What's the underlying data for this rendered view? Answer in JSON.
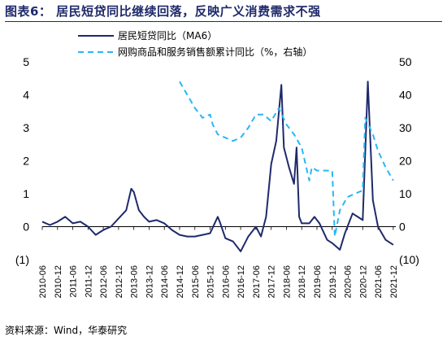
{
  "figure": {
    "title": "图表6：  居民短贷同比继续回落，反映广义消费需求不强",
    "source": "资料来源：Wind，华泰研究"
  },
  "chart_data": {
    "type": "line",
    "legend": [
      {
        "name": "居民短贷同比（MA6）",
        "style": "solid",
        "color": "#1f2a6b",
        "axis": "left"
      },
      {
        "name": "网购商品和服务销售额累计同比（%，右轴）",
        "style": "dashed",
        "color": "#29b6f6",
        "axis": "right"
      }
    ],
    "legend_position": "top-left",
    "grid": false,
    "left_axis": {
      "ylim": [
        -1,
        5
      ],
      "ticks": [
        -1,
        0,
        1,
        2,
        3,
        4,
        5
      ],
      "tick_labels": [
        "(1)",
        "0",
        "1",
        "2",
        "3",
        "4",
        "5"
      ]
    },
    "right_axis": {
      "ylim": [
        -10,
        50
      ],
      "ticks": [
        -10,
        0,
        10,
        20,
        30,
        40,
        50
      ],
      "tick_labels": [
        "(10)",
        "0",
        "10",
        "20",
        "30",
        "40",
        "50"
      ]
    },
    "x_ticks": [
      "2010-06",
      "2010-12",
      "2011-06",
      "2011-12",
      "2012-06",
      "2012-12",
      "2013-06",
      "2013-12",
      "2014-06",
      "2014-12",
      "2015-06",
      "2015-12",
      "2016-06",
      "2016-12",
      "2017-06",
      "2017-12",
      "2018-06",
      "2018-12",
      "2019-06",
      "2019-12",
      "2020-06",
      "2020-12",
      "2021-06",
      "2021-12"
    ],
    "series": [
      {
        "name": "居民短贷同比（MA6）",
        "axis": "left",
        "points": [
          [
            "2010-06",
            0.15
          ],
          [
            "2010-09",
            0.05
          ],
          [
            "2010-12",
            0.15
          ],
          [
            "2011-03",
            0.3
          ],
          [
            "2011-06",
            0.1
          ],
          [
            "2011-09",
            0.15
          ],
          [
            "2011-12",
            0.0
          ],
          [
            "2012-03",
            -0.25
          ],
          [
            "2012-06",
            -0.1
          ],
          [
            "2012-09",
            0.0
          ],
          [
            "2012-12",
            0.25
          ],
          [
            "2013-03",
            0.5
          ],
          [
            "2013-05",
            1.15
          ],
          [
            "2013-06",
            1.05
          ],
          [
            "2013-08",
            0.5
          ],
          [
            "2013-10",
            0.3
          ],
          [
            "2013-12",
            0.15
          ],
          [
            "2014-03",
            0.2
          ],
          [
            "2014-06",
            0.1
          ],
          [
            "2014-09",
            -0.1
          ],
          [
            "2014-12",
            -0.25
          ],
          [
            "2015-03",
            -0.3
          ],
          [
            "2015-06",
            -0.3
          ],
          [
            "2015-09",
            -0.25
          ],
          [
            "2015-12",
            -0.2
          ],
          [
            "2016-03",
            0.3
          ],
          [
            "2016-04",
            0.1
          ],
          [
            "2016-06",
            -0.35
          ],
          [
            "2016-09",
            -0.45
          ],
          [
            "2016-12",
            -0.75
          ],
          [
            "2017-03",
            -0.3
          ],
          [
            "2017-06",
            0.0
          ],
          [
            "2017-08",
            -0.3
          ],
          [
            "2017-10",
            0.3
          ],
          [
            "2017-12",
            1.9
          ],
          [
            "2018-02",
            2.6
          ],
          [
            "2018-04",
            4.3
          ],
          [
            "2018-05",
            2.4
          ],
          [
            "2018-07",
            1.8
          ],
          [
            "2018-09",
            1.3
          ],
          [
            "2018-10",
            2.4
          ],
          [
            "2018-11",
            0.3
          ],
          [
            "2018-12",
            0.1
          ],
          [
            "2019-03",
            0.1
          ],
          [
            "2019-05",
            0.3
          ],
          [
            "2019-07",
            0.1
          ],
          [
            "2019-10",
            -0.4
          ],
          [
            "2019-12",
            -0.5
          ],
          [
            "2020-03",
            -0.7
          ],
          [
            "2020-05",
            -0.2
          ],
          [
            "2020-08",
            0.4
          ],
          [
            "2020-10",
            0.3
          ],
          [
            "2020-12",
            0.2
          ],
          [
            "2021-02",
            4.4
          ],
          [
            "2021-04",
            0.8
          ],
          [
            "2021-06",
            0.0
          ],
          [
            "2021-09",
            -0.4
          ],
          [
            "2021-12",
            -0.55
          ]
        ]
      },
      {
        "name": "网购商品和服务销售额累计同比（%，右轴）",
        "axis": "right",
        "points": [
          [
            "2014-12",
            44
          ],
          [
            "2015-03",
            40
          ],
          [
            "2015-06",
            36
          ],
          [
            "2015-09",
            33
          ],
          [
            "2015-12",
            34
          ],
          [
            "2016-01",
            31
          ],
          [
            "2016-03",
            28
          ],
          [
            "2016-06",
            27
          ],
          [
            "2016-09",
            26
          ],
          [
            "2016-12",
            27
          ],
          [
            "2017-03",
            30
          ],
          [
            "2017-06",
            34
          ],
          [
            "2017-09",
            34
          ],
          [
            "2017-12",
            32
          ],
          [
            "2018-03",
            36
          ],
          [
            "2018-06",
            31
          ],
          [
            "2018-09",
            28
          ],
          [
            "2018-12",
            24
          ],
          [
            "2019-03",
            14
          ],
          [
            "2019-04",
            18
          ],
          [
            "2019-06",
            17
          ],
          [
            "2019-09",
            17
          ],
          [
            "2019-12",
            17
          ],
          [
            "2020-01",
            -3
          ],
          [
            "2020-03",
            5
          ],
          [
            "2020-06",
            9
          ],
          [
            "2020-09",
            10
          ],
          [
            "2020-12",
            11
          ],
          [
            "2021-01",
            33
          ],
          [
            "2021-04",
            28
          ],
          [
            "2021-06",
            23
          ],
          [
            "2021-09",
            18
          ],
          [
            "2021-12",
            14
          ]
        ]
      }
    ]
  }
}
